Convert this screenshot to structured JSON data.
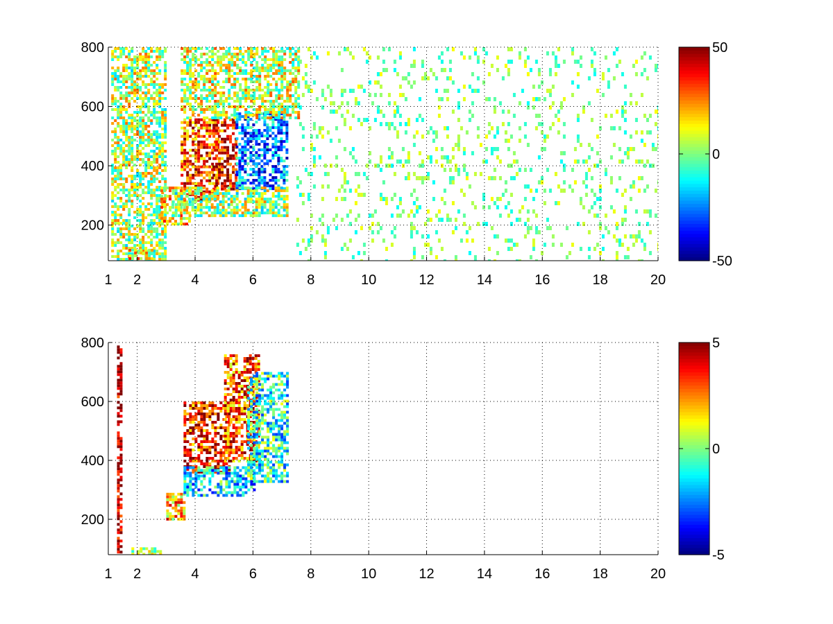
{
  "chart_data": [
    {
      "type": "heatmap",
      "title": "",
      "xlabel": "",
      "ylabel": "",
      "xlim": [
        1,
        20
      ],
      "ylim": [
        80,
        800
      ],
      "xticks": [
        1,
        2,
        4,
        6,
        8,
        10,
        12,
        14,
        16,
        18,
        20
      ],
      "xtick_labels": [
        "1",
        "2",
        "4",
        "6",
        "8",
        "10",
        "12",
        "14",
        "16",
        "18",
        "20"
      ],
      "yticks": [
        200,
        400,
        600,
        800
      ],
      "ytick_labels": [
        "200",
        "400",
        "600",
        "800"
      ],
      "grid": true,
      "grid_style": "dotted",
      "colormap": "jet",
      "clim": [
        -50,
        50
      ],
      "colorbar": {
        "placement": "right",
        "ticks": [
          -50,
          0,
          50
        ],
        "tick_labels": [
          "-50",
          "0",
          "50"
        ]
      },
      "regions": [
        {
          "x_range": [
            1.1,
            3.0
          ],
          "y_range": [
            80,
            800
          ],
          "value": 5
        },
        {
          "x_range": [
            1.7,
            2.5
          ],
          "y_range": [
            90,
            120
          ],
          "value": 15
        },
        {
          "x_range": [
            2.8,
            3.8
          ],
          "y_range": [
            200,
            330
          ],
          "value": 15
        },
        {
          "x_range": [
            3.5,
            4.8
          ],
          "y_range": [
            280,
            560
          ],
          "value": 30
        },
        {
          "x_range": [
            4.6,
            5.4
          ],
          "y_range": [
            320,
            560
          ],
          "value": 38
        },
        {
          "x_range": [
            5.4,
            7.2
          ],
          "y_range": [
            320,
            580
          ],
          "value": -25
        },
        {
          "x_range": [
            3.5,
            7.6
          ],
          "y_range": [
            560,
            800
          ],
          "value": 8
        },
        {
          "x_range": [
            3.2,
            7.2
          ],
          "y_range": [
            230,
            330
          ],
          "value": 3
        },
        {
          "x_range": [
            7.5,
            20
          ],
          "y_range": [
            80,
            800
          ],
          "value": 0
        }
      ]
    },
    {
      "type": "heatmap",
      "title": "",
      "xlabel": "",
      "ylabel": "",
      "xlim": [
        1,
        20
      ],
      "ylim": [
        80,
        800
      ],
      "xticks": [
        1,
        2,
        4,
        6,
        8,
        10,
        12,
        14,
        16,
        18,
        20
      ],
      "xtick_labels": [
        "1",
        "2",
        "4",
        "6",
        "8",
        "10",
        "12",
        "14",
        "16",
        "18",
        "20"
      ],
      "yticks": [
        200,
        400,
        600,
        800
      ],
      "ytick_labels": [
        "200",
        "400",
        "600",
        "800"
      ],
      "grid": true,
      "grid_style": "dotted",
      "colormap": "jet",
      "clim": [
        -5,
        5
      ],
      "colorbar": {
        "placement": "right",
        "ticks": [
          -5,
          0,
          5
        ],
        "tick_labels": [
          "-5",
          "0",
          "5"
        ]
      },
      "regions": [
        {
          "x_range": [
            1.3,
            1.4
          ],
          "y_range": [
            80,
            790
          ],
          "value": 5
        },
        {
          "x_range": [
            1.8,
            2.8
          ],
          "y_range": [
            85,
            105
          ],
          "value": 1
        },
        {
          "x_range": [
            3.0,
            3.6
          ],
          "y_range": [
            200,
            290
          ],
          "value": 2
        },
        {
          "x_range": [
            3.6,
            5.2
          ],
          "y_range": [
            360,
            600
          ],
          "value": 3.5
        },
        {
          "x_range": [
            5.0,
            6.2
          ],
          "y_range": [
            400,
            760
          ],
          "value": 3
        },
        {
          "x_range": [
            3.6,
            6.0
          ],
          "y_range": [
            280,
            380
          ],
          "value": -1.5
        },
        {
          "x_range": [
            5.8,
            7.2
          ],
          "y_range": [
            330,
            700
          ],
          "value": -1
        }
      ]
    }
  ]
}
